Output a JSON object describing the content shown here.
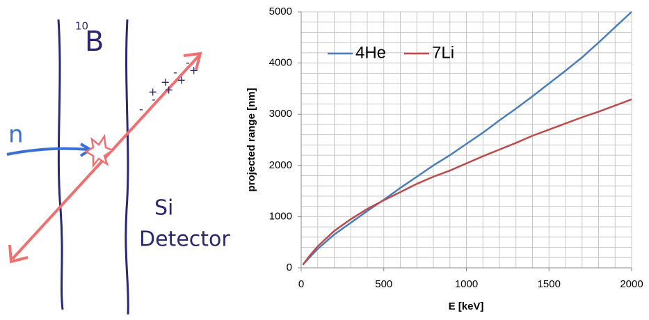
{
  "diagram": {
    "isotope_mass": "10",
    "element": "B",
    "neutron": "n",
    "detector_line1": "Si",
    "detector_line2": "Detector",
    "charges": [
      "-",
      "+",
      "-",
      "+",
      "+",
      "-",
      "+",
      "-",
      "+"
    ]
  },
  "chart_data": {
    "type": "line",
    "xlabel": "E [keV]",
    "ylabel": "projected range [nm]",
    "x": [
      10,
      50,
      100,
      200,
      300,
      400,
      500,
      600,
      700,
      800,
      900,
      1000,
      1100,
      1200,
      1300,
      1400,
      1500,
      1600,
      1700,
      1800,
      1900,
      2000
    ],
    "series": [
      {
        "name": "4He",
        "color": "#4a7ebb",
        "values": [
          60,
          200,
          370,
          650,
          880,
          1110,
          1330,
          1560,
          1780,
          2000,
          2200,
          2420,
          2640,
          2880,
          3110,
          3350,
          3600,
          3850,
          4110,
          4400,
          4700,
          5000
        ]
      },
      {
        "name": "7Li",
        "color": "#be4b48",
        "values": [
          60,
          230,
          420,
          720,
          950,
          1150,
          1320,
          1480,
          1640,
          1780,
          1900,
          2040,
          2180,
          2310,
          2440,
          2580,
          2700,
          2820,
          2940,
          3050,
          3170,
          3290
        ]
      }
    ],
    "xlim": [
      0,
      2000
    ],
    "xticks": [
      0,
      500,
      1000,
      1500,
      2000
    ],
    "ylim": [
      0,
      5000
    ],
    "yticks": [
      0,
      1000,
      2000,
      3000,
      4000,
      5000
    ],
    "grid": true,
    "xgrid": [
      0,
      100,
      200,
      300,
      400,
      500,
      600,
      700,
      800,
      900,
      1000,
      1100,
      1200,
      1300,
      1400,
      1500,
      1600,
      1700,
      1800,
      1900,
      2000
    ],
    "ygrid": [
      0,
      200,
      400,
      600,
      800,
      1000,
      1200,
      1400,
      1600,
      1800,
      2000,
      2200,
      2400,
      2600,
      2800,
      3000,
      3200,
      3400,
      3600,
      3800,
      4000,
      4200,
      4400,
      4600,
      4800,
      5000
    ],
    "legend": "top-left"
  }
}
